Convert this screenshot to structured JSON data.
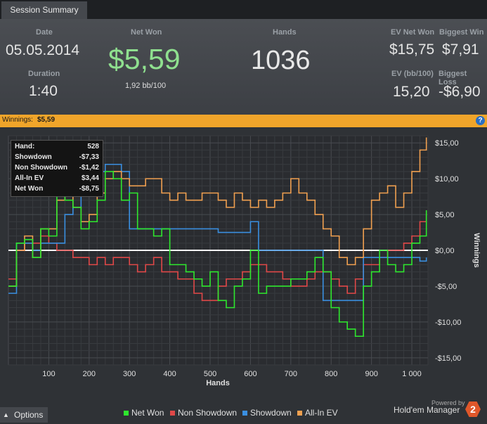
{
  "tab": {
    "label": "Session Summary"
  },
  "summary": {
    "date_label": "Date",
    "date": "05.05.2014",
    "duration_label": "Duration",
    "duration": "1:40",
    "net_won_label": "Net Won",
    "net_won": "$5,59",
    "bb100": "1,92 bb/100",
    "hands_label": "Hands",
    "hands": "1036",
    "ev_net_won_label": "EV Net Won",
    "ev_net_won": "$15,75",
    "biggest_win_label": "Biggest Win",
    "biggest_win": "$7,91",
    "ev_bb100_label": "EV (bb/100)",
    "ev_bb100": "15,20",
    "biggest_loss_label": "Biggest Loss",
    "biggest_loss": "-$6,90"
  },
  "winbar": {
    "label": "Winnings:",
    "value": "$5,59",
    "help": "?"
  },
  "tooltip": {
    "hand_label": "Hand:",
    "hand": "528",
    "rows": [
      {
        "label": "Showdown",
        "value": "-$7,33"
      },
      {
        "label": "Non Showdown",
        "value": "-$1,42"
      },
      {
        "label": "All-In EV",
        "value": "$3,44"
      },
      {
        "label": "Net Won",
        "value": "-$8,75"
      }
    ]
  },
  "footer": {
    "options": "Options",
    "powered_by": "Powered by",
    "brand": "Hold'em Manager",
    "logo": "2"
  },
  "colors": {
    "net_won": "#2ee82e",
    "non_showdown": "#e04848",
    "showdown": "#3a8fe0",
    "all_in_ev": "#f0a050",
    "accent": "#f0a52a"
  },
  "chart_data": {
    "type": "line",
    "xlabel": "Hands",
    "ylabel": "Winnings",
    "xlim": [
      0,
      1040
    ],
    "ylim": [
      -16,
      16
    ],
    "x_ticks": [
      100,
      200,
      300,
      400,
      500,
      600,
      700,
      800,
      900,
      1000
    ],
    "x_tick_labels": [
      "100",
      "200",
      "300",
      "400",
      "500",
      "600",
      "700",
      "800",
      "900",
      "1 000"
    ],
    "y_ticks": [
      15,
      10,
      5,
      0,
      -5,
      -10,
      -15
    ],
    "y_tick_labels": [
      "$15,00",
      "$10,00",
      "$5,00",
      "$0,00",
      "-$5,00",
      "-$10,00",
      "-$15,00"
    ],
    "legend_placement": "bottom",
    "x": [
      0,
      20,
      40,
      60,
      80,
      100,
      120,
      140,
      160,
      180,
      200,
      220,
      240,
      260,
      280,
      300,
      320,
      340,
      360,
      380,
      400,
      420,
      440,
      460,
      480,
      500,
      520,
      540,
      560,
      580,
      600,
      620,
      640,
      660,
      680,
      700,
      720,
      740,
      760,
      780,
      800,
      820,
      840,
      860,
      880,
      900,
      920,
      940,
      960,
      980,
      1000,
      1020,
      1036
    ],
    "series": [
      {
        "name": "Net Won",
        "values": [
          -5,
          1,
          1.5,
          -1,
          3,
          2,
          8,
          7,
          6,
          3,
          4,
          7,
          11,
          10,
          7,
          8,
          3,
          3,
          2,
          3,
          -2,
          -2,
          -3,
          -4,
          -5,
          -3,
          -7,
          -8,
          -5,
          -4,
          0,
          -6,
          -5,
          -5,
          -5,
          -4,
          -4,
          -3,
          -1,
          -3,
          -8,
          -10,
          -11,
          -12,
          -5,
          -3,
          0,
          -2,
          -3,
          -2,
          1,
          2,
          5.6
        ]
      },
      {
        "name": "Non Showdown",
        "values": [
          -4,
          0,
          1,
          1,
          2,
          1,
          0,
          0,
          -1,
          -1,
          -2,
          -1,
          -2,
          -1,
          -1,
          -2,
          -3,
          -2,
          -1,
          -3,
          -3,
          -4,
          -4,
          -6,
          -7,
          -7,
          -5,
          -4,
          -4,
          -3,
          -2,
          -2,
          -3,
          -3,
          -4,
          -5,
          -5,
          -4,
          -3,
          -3,
          -4,
          -5,
          -6,
          -4,
          -2,
          -2,
          -1,
          0,
          0,
          1,
          2,
          4,
          5
        ]
      },
      {
        "name": "Showdown",
        "values": [
          -6,
          1,
          1,
          0,
          1,
          1,
          1,
          5,
          6,
          10,
          11,
          11,
          12,
          12,
          11,
          3,
          3,
          3,
          3,
          3,
          3,
          3,
          3,
          3,
          3,
          3,
          2.5,
          2.5,
          2.5,
          2.5,
          4,
          0,
          0,
          0,
          0,
          0,
          0,
          0,
          0,
          -7,
          -7,
          -7,
          -7,
          -7,
          -1,
          -1,
          -1,
          -1,
          -1,
          -1,
          -1,
          -1.5,
          -1
        ]
      },
      {
        "name": "All-In EV",
        "values": [
          -5,
          0,
          2,
          -1,
          3,
          3,
          7,
          8,
          6,
          4,
          5,
          8,
          10,
          11,
          10,
          9,
          9,
          10,
          10,
          8,
          7,
          8,
          7,
          7,
          8,
          8,
          7,
          6,
          8,
          7,
          6,
          7,
          6,
          7,
          8,
          10,
          8,
          7,
          5,
          3,
          2,
          -1,
          -2,
          -1,
          3,
          7,
          8,
          9,
          6,
          8,
          11,
          14,
          15.75
        ]
      }
    ]
  }
}
